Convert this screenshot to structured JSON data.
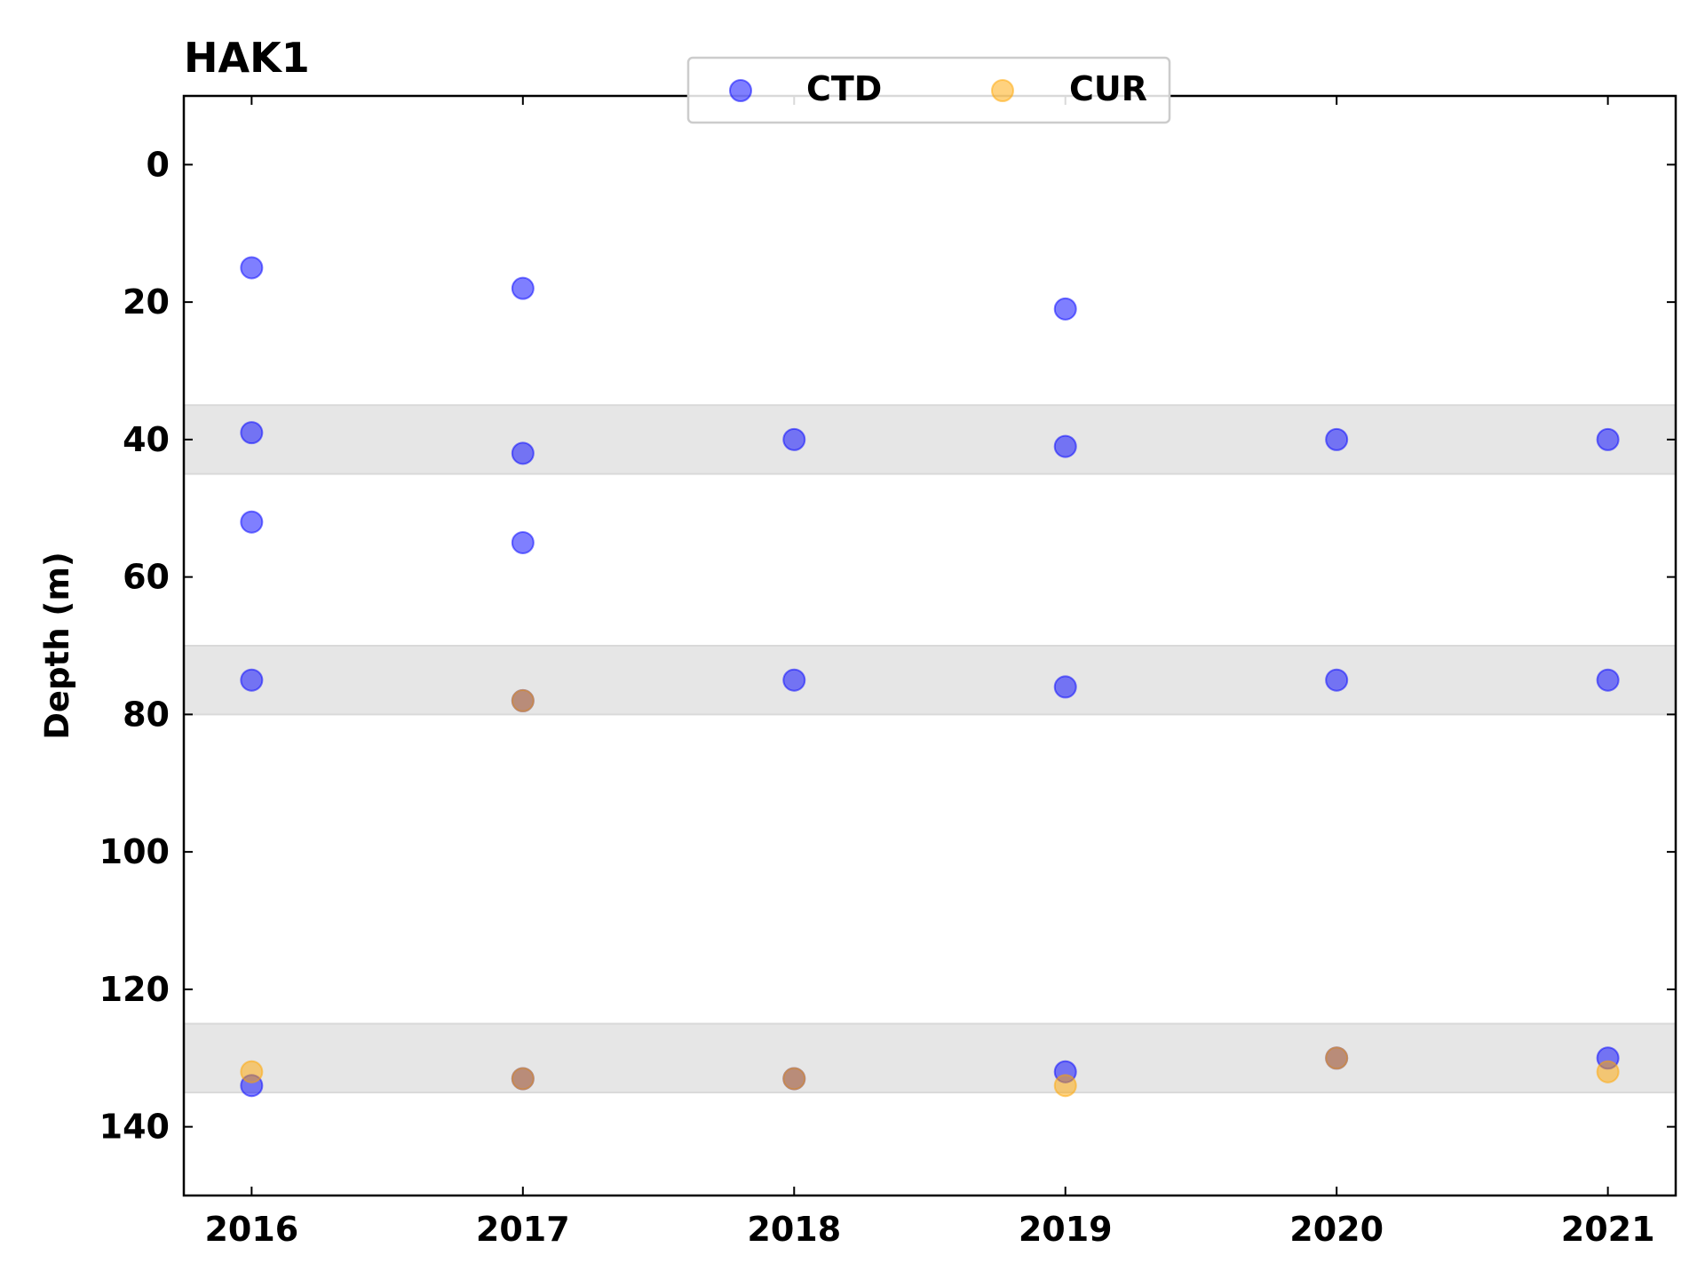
{
  "chart_data": {
    "type": "scatter",
    "title": "HAK1",
    "xlabel": "",
    "ylabel": "Depth (m)",
    "x_ticks": [
      2016,
      2017,
      2018,
      2019,
      2020,
      2021
    ],
    "y_ticks": [
      0,
      20,
      40,
      60,
      80,
      100,
      120,
      140
    ],
    "xlim": [
      2015.75,
      2021.25
    ],
    "ylim": [
      150,
      -10
    ],
    "y_inverted": true,
    "grid": false,
    "legend_position": "top-center",
    "bands": [
      {
        "from": 35,
        "to": 45
      },
      {
        "from": 70,
        "to": 80
      },
      {
        "from": 125,
        "to": 135
      }
    ],
    "series": [
      {
        "name": "CTD",
        "color": "#0000ff",
        "x": [
          2016,
          2016,
          2016,
          2016,
          2016,
          2017,
          2017,
          2017,
          2017,
          2017,
          2018,
          2018,
          2018,
          2019,
          2019,
          2019,
          2019,
          2020,
          2020,
          2020,
          2021,
          2021,
          2021
        ],
        "y": [
          15,
          39,
          52,
          75,
          134,
          18,
          42,
          55,
          78,
          133,
          40,
          75,
          133,
          21,
          41,
          76,
          132,
          40,
          75,
          130,
          40,
          75,
          130
        ]
      },
      {
        "name": "CUR",
        "color": "#ffa500",
        "x": [
          2016,
          2017,
          2017,
          2018,
          2019,
          2020,
          2021
        ],
        "y": [
          132,
          78,
          133,
          133,
          134,
          130,
          132
        ]
      }
    ]
  }
}
